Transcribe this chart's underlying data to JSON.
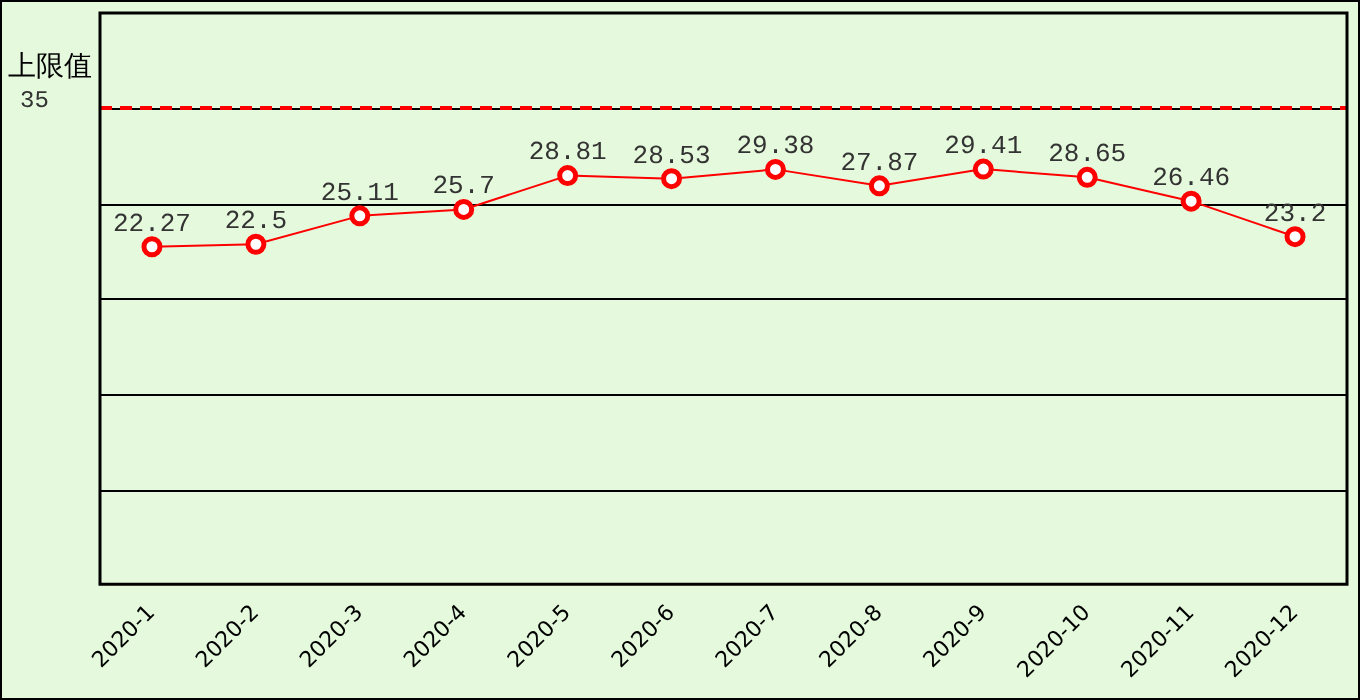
{
  "chart_data": {
    "type": "line",
    "categories": [
      "2020-1",
      "2020-2",
      "2020-3",
      "2020-4",
      "2020-5",
      "2020-6",
      "2020-7",
      "2020-8",
      "2020-9",
      "2020-10",
      "2020-11",
      "2020-12"
    ],
    "series": [
      {
        "color": "#ff0000",
        "values": [
          22.27,
          22.5,
          25.11,
          25.7,
          28.81,
          28.53,
          29.38,
          27.87,
          29.41,
          28.65,
          26.46,
          23.2
        ]
      }
    ],
    "ylim": [
      -8.75,
      43.75
    ],
    "tick_labels": "x",
    "grid": "y",
    "annotations": [
      "35"
    ],
    "data_labels": true,
    "marker": "circle",
    "line_style": "solid",
    "legend": false,
    "ref_lines": [
      {
        "axis": "y",
        "value": 35,
        "label": "上限值",
        "color": "#ff0000",
        "line_style": "dashed"
      }
    ]
  }
}
